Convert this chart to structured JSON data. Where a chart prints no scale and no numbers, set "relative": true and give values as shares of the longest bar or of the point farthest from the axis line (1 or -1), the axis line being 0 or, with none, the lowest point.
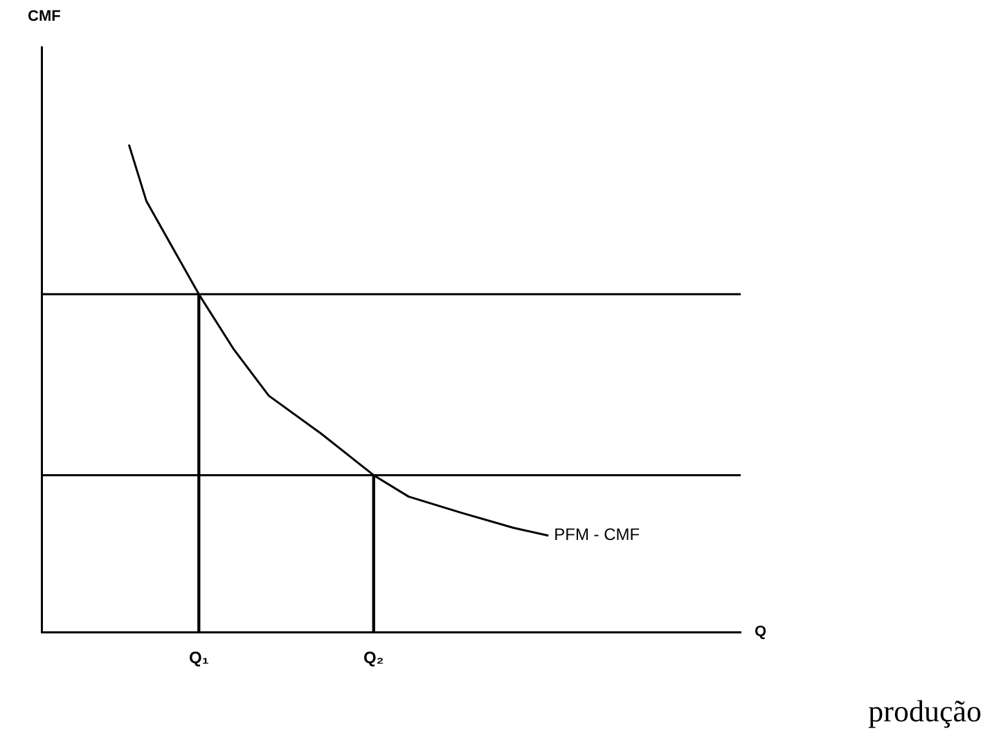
{
  "chart_data": {
    "type": "line",
    "relative": true,
    "xlabel": "Q",
    "grid": false,
    "legend": false,
    "marker": "none",
    "line_style": "solid",
    "categories": [
      null,
      null,
      null,
      null,
      null,
      null,
      null,
      null,
      null,
      "Q₁",
      null,
      null,
      null,
      null,
      null,
      null,
      null,
      null,
      null,
      "Q₂",
      null,
      null,
      null,
      null,
      null,
      null,
      null,
      null,
      null,
      null,
      null,
      null,
      null,
      null,
      null,
      null,
      null,
      null,
      null,
      null,
      null
    ],
    "series": [
      {
        "name": "PFM - CMF",
        "color": "#000000",
        "values": [
          null,
          null,
          null,
          null,
          null,
          1,
          0.884,
          null,
          null,
          0.693,
          null,
          0.58,
          null,
          0.485,
          null,
          null,
          0.407,
          null,
          null,
          0.322,
          null,
          0.278,
          null,
          null,
          0.245,
          null,
          null,
          0.214,
          null,
          0.198,
          null,
          null,
          null,
          null,
          null,
          null,
          null,
          null,
          null,
          null,
          null
        ]
      },
      {
        "type": "bar",
        "color": "#000000",
        "values": [
          null,
          null,
          null,
          null,
          null,
          null,
          null,
          null,
          null,
          0.693,
          null,
          null,
          null,
          null,
          null,
          null,
          null,
          null,
          null,
          0.322,
          null,
          null,
          null,
          null,
          null,
          null,
          null,
          null,
          null,
          null,
          null,
          null,
          null,
          null,
          null,
          null,
          null,
          null,
          null,
          null,
          null
        ]
      }
    ],
    "ref_lines": [
      {
        "axis": "y",
        "value": 0.693,
        "color": "#000000"
      },
      {
        "axis": "y",
        "value": 0.322,
        "color": "#000000"
      }
    ],
    "annotations": [
      "CMF",
      "produção"
    ]
  }
}
